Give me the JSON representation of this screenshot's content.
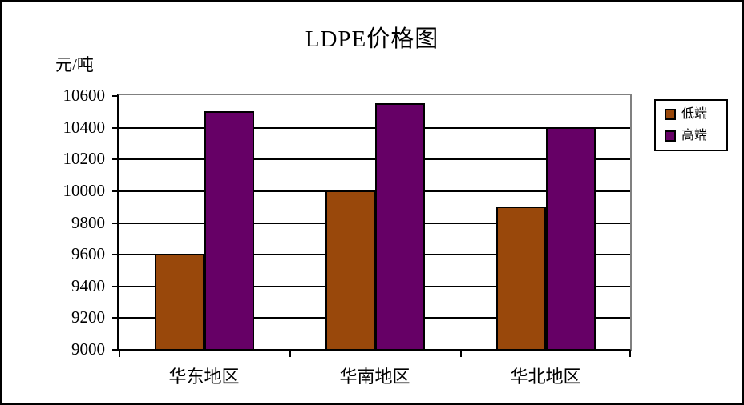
{
  "chart": {
    "title": "LDPE价格图",
    "unit_label": "元/吨"
  },
  "chart_data": {
    "type": "bar",
    "title": "LDPE价格图",
    "xlabel": "",
    "ylabel": "元/吨",
    "categories": [
      "华东地区",
      "华南地区",
      "华北地区"
    ],
    "series": [
      {
        "name": "低端",
        "key": "low",
        "color": "#99480B",
        "values": [
          9600,
          10000,
          9900
        ]
      },
      {
        "name": "高端",
        "key": "high",
        "color": "#660066",
        "values": [
          10500,
          10550,
          10400
        ]
      }
    ],
    "ylim": [
      9000,
      10600
    ],
    "ytick_step": 200,
    "yticks": [
      9000,
      9200,
      9400,
      9600,
      9800,
      10000,
      10200,
      10400,
      10600
    ],
    "grid": true,
    "legend_position": "right",
    "colors": {
      "bar_border": "#000000",
      "gridline": "#000000",
      "plot_border_gray": "#808080",
      "frame_border": "#000000",
      "background": "#ffffff"
    }
  }
}
